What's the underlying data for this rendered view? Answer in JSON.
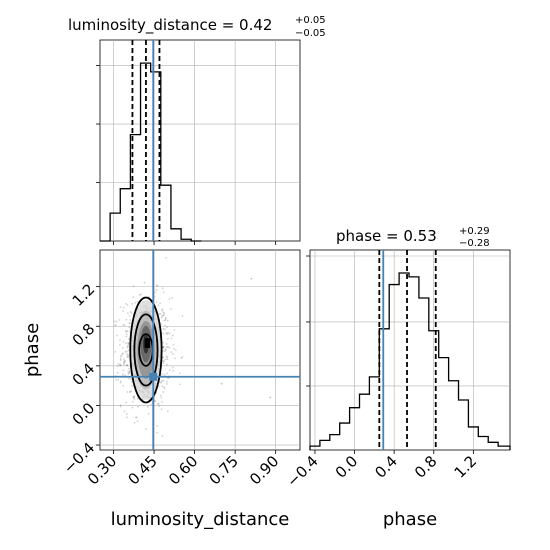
{
  "chart_data": [
    {
      "type": "histogram",
      "panel": "top-left",
      "title": {
        "base": "luminosity_distance = 0.42",
        "sup": "+0.05",
        "sub": "−0.05"
      },
      "xlim": [
        0.25,
        0.99
      ],
      "grid": true,
      "bins": [
        0.25,
        0.2875,
        0.325,
        0.3625,
        0.4,
        0.4375,
        0.475,
        0.5125,
        0.55,
        0.5875,
        0.625
      ],
      "counts": [
        0,
        16,
        30,
        61,
        102,
        97,
        32,
        7,
        1,
        0
      ],
      "quantiles": [
        0.37,
        0.42,
        0.47
      ],
      "truth": 0.447
    },
    {
      "type": "scatter+contour",
      "panel": "bottom-left",
      "xlabel": "luminosity_distance",
      "ylabel": "phase",
      "xlim": [
        0.25,
        0.99
      ],
      "ylim": [
        -0.45,
        1.57
      ],
      "xticks": [
        "0.30",
        "0.45",
        "0.60",
        "0.75",
        "0.90"
      ],
      "xtick_values": [
        0.3,
        0.45,
        0.6,
        0.75,
        0.9
      ],
      "yticks": [
        "−0.4",
        "0.0",
        "0.4",
        "0.8",
        "1.2"
      ],
      "ytick_values": [
        -0.4,
        0.0,
        0.4,
        0.8,
        1.2
      ],
      "grid": true,
      "density_center": [
        0.42,
        0.53
      ],
      "density_sigma": [
        0.045,
        0.28
      ],
      "contour_levels": [
        {
          "rx": 0.025,
          "ry": 0.16,
          "cy": 0.56
        },
        {
          "rx": 0.043,
          "ry": 0.36,
          "cy": 0.56
        },
        {
          "rx": 0.058,
          "ry": 0.53,
          "cy": 0.56
        }
      ],
      "truth": [
        0.447,
        0.29
      ]
    },
    {
      "type": "histogram",
      "panel": "bottom-right",
      "title": {
        "base": "phase = 0.53",
        "sup": "+0.29",
        "sub": "−0.28"
      },
      "xlabel": "phase",
      "xlim": [
        -0.45,
        1.57
      ],
      "xticks": [
        "−0.4",
        "0.0",
        "0.4",
        "0.8",
        "1.2"
      ],
      "xtick_values": [
        -0.4,
        0.0,
        0.4,
        0.8,
        1.2
      ],
      "grid": true,
      "bins": [
        -0.45,
        -0.35,
        -0.25,
        -0.15,
        -0.05,
        0.05,
        0.15,
        0.25,
        0.35,
        0.45,
        0.55,
        0.65,
        0.75,
        0.85,
        0.95,
        1.05,
        1.15,
        1.25,
        1.35,
        1.45,
        1.57
      ],
      "counts": [
        2,
        5,
        8,
        14,
        22,
        29,
        38,
        63,
        86,
        92,
        90,
        79,
        62,
        48,
        36,
        26,
        12,
        7,
        4,
        2
      ],
      "quantiles": [
        0.25,
        0.53,
        0.82
      ],
      "truth": 0.29
    }
  ],
  "colors": {
    "truth": "#4682b4",
    "hist": "#000000",
    "grid": "#b0b0b0",
    "scatter": "#7f7f7f"
  }
}
